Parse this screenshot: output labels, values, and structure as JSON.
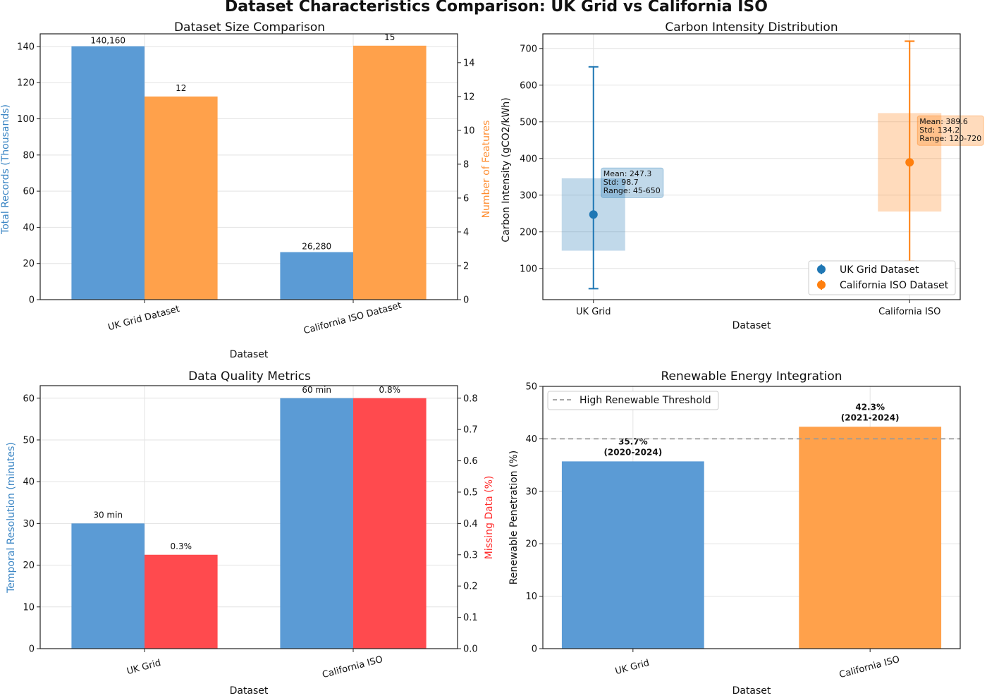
{
  "suptitle": "Dataset Characteristics Comparison: UK Grid vs California ISO",
  "colors": {
    "blue": "#5b9bd5",
    "orange": "#ffa14b",
    "red": "#ff4a4e",
    "darkblue": "#1f77b4",
    "darkorange": "#ff7f0e"
  },
  "chart_data": [
    {
      "id": "size",
      "type": "bar",
      "title": "Dataset Size Comparison",
      "xlabel": "Dataset",
      "categories": [
        "UK Grid Dataset",
        "California ISO Dataset"
      ],
      "series": [
        {
          "name": "Total Records (Thousands)",
          "axis": "left",
          "values": [
            140.16,
            26.28
          ],
          "labels": [
            "140,160",
            "26,280"
          ]
        },
        {
          "name": "Number of Features",
          "axis": "right",
          "values": [
            12,
            15
          ],
          "labels": [
            "12",
            "15"
          ]
        }
      ],
      "ylabel_left": "Total Records (Thousands)",
      "ylabel_right": "Number of Features",
      "ylim_left": [
        0,
        147
      ],
      "ylim_right": [
        0,
        15.7
      ],
      "yticks_left": [
        "0",
        "20",
        "40",
        "60",
        "80",
        "100",
        "120",
        "140"
      ],
      "yticks_right": [
        "0",
        "2",
        "4",
        "6",
        "8",
        "10",
        "12",
        "14"
      ]
    },
    {
      "id": "intensity",
      "type": "scatter",
      "title": "Carbon Intensity Distribution",
      "xlabel": "Dataset",
      "ylabel": "Carbon Intensity (gCO2/kWh)",
      "categories": [
        "UK Grid",
        "California ISO"
      ],
      "ylim": [
        15,
        740
      ],
      "yticks": [
        "100",
        "200",
        "300",
        "400",
        "500",
        "600",
        "700"
      ],
      "points": [
        {
          "name": "UK Grid Dataset",
          "mean": 247.3,
          "std": 98.7,
          "min": 45,
          "max": 650,
          "annotation": [
            "Mean: 247.3",
            "Std: 98.7",
            "Range: 45-650"
          ]
        },
        {
          "name": "California ISO Dataset",
          "mean": 389.6,
          "std": 134.2,
          "min": 120,
          "max": 720,
          "annotation": [
            "Mean: 389.6",
            "Std: 134.2",
            "Range: 120-720"
          ]
        }
      ],
      "legend": [
        "UK Grid Dataset",
        "California ISO Dataset"
      ]
    },
    {
      "id": "quality",
      "type": "bar",
      "title": "Data Quality Metrics",
      "xlabel": "Dataset",
      "categories": [
        "UK Grid",
        "California ISO"
      ],
      "series": [
        {
          "name": "Temporal Resolution (minutes)",
          "axis": "left",
          "values": [
            30,
            60
          ],
          "labels": [
            "30 min",
            "60 min"
          ]
        },
        {
          "name": "Missing Data (%)",
          "axis": "right",
          "values": [
            0.3,
            0.8
          ],
          "labels": [
            "0.3%",
            "0.8%"
          ]
        }
      ],
      "ylabel_left": "Temporal Resolution (minutes)",
      "ylabel_right": "Missing Data (%)",
      "ylim_left": [
        0,
        63
      ],
      "ylim_right": [
        0,
        0.84
      ],
      "yticks_left": [
        "0",
        "10",
        "20",
        "30",
        "40",
        "50",
        "60"
      ],
      "yticks_right": [
        "0.0",
        "0.1",
        "0.2",
        "0.3",
        "0.4",
        "0.5",
        "0.6",
        "0.7",
        "0.8"
      ]
    },
    {
      "id": "renewable",
      "type": "bar",
      "title": "Renewable Energy Integration",
      "xlabel": "Dataset",
      "ylabel": "Renewable Penetration (%)",
      "categories": [
        "UK Grid",
        "California ISO"
      ],
      "values": [
        35.7,
        42.3
      ],
      "labels": [
        [
          "35.7%",
          "(2020-2024)"
        ],
        [
          "42.3%",
          "(2021-2024)"
        ]
      ],
      "threshold": 40,
      "legend": "High Renewable Threshold",
      "ylim": [
        0,
        50
      ],
      "yticks": [
        "0",
        "10",
        "20",
        "30",
        "40",
        "50"
      ]
    }
  ]
}
